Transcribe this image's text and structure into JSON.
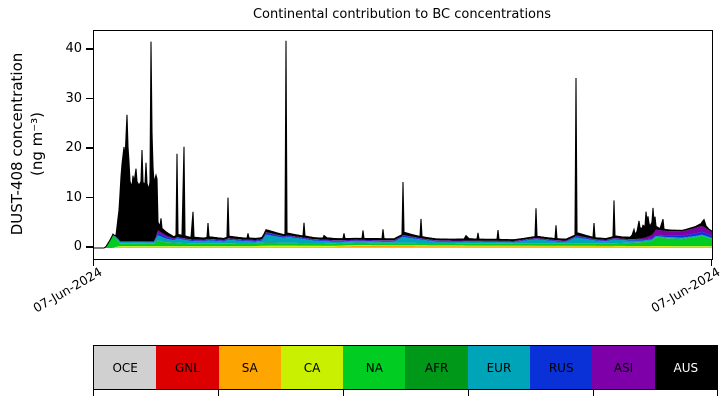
{
  "figure": {
    "title": "Continental contribution to BC concentrations",
    "ylabel_line1": "DUST-408 concentration",
    "ylabel_line2": "(ng m⁻³)",
    "y_tick_labels": [
      "0",
      "10",
      "20",
      "30",
      "40"
    ],
    "x_tick_labels": [
      "07-Jun-2024",
      "07-Jun-2024"
    ]
  },
  "legend": {
    "entries": [
      {
        "label": "OCE",
        "color": "#d0d0d0",
        "text_color": "#000000"
      },
      {
        "label": "GNL",
        "color": "#dd0000",
        "text_color": "#000000"
      },
      {
        "label": "SA",
        "color": "#ffa500",
        "text_color": "#000000"
      },
      {
        "label": "CA",
        "color": "#c8f000",
        "text_color": "#000000"
      },
      {
        "label": "NA",
        "color": "#00cc22",
        "text_color": "#000000"
      },
      {
        "label": "AFR",
        "color": "#009818",
        "text_color": "#000000"
      },
      {
        "label": "EUR",
        "color": "#00a4b8",
        "text_color": "#000000"
      },
      {
        "label": "RUS",
        "color": "#0a30d8",
        "text_color": "#000000"
      },
      {
        "label": "ASI",
        "color": "#7d00a8",
        "text_color": "#000000"
      },
      {
        "label": "AUS",
        "color": "#000000",
        "text_color": "#ffffff"
      }
    ]
  },
  "chart_data": {
    "type": "area",
    "stacked": true,
    "title": "Continental contribution to BC concentrations",
    "ylabel": "DUST-408 concentration (ng m⁻³)",
    "unit": "ng m⁻³",
    "ylim": [
      -2.2,
      43.8
    ],
    "yticks": [
      0,
      10,
      20,
      30,
      40
    ],
    "x_axis": {
      "start_label": "07-Jun-2024",
      "end_label": "07-Jun-2024",
      "unit": "normalized axis position, 0 = left tick, 618 = right tick"
    },
    "legend_position": "bottom",
    "note": "values are piecewise-linear keyframes [x, value]; layers stack bottom-to-top in listed order; AUS (black) dominates all tall spikes",
    "series": [
      {
        "name": "OCE",
        "color": "#d0d0d0",
        "keyframes": [
          [
            0,
            0
          ],
          [
            20,
            0
          ],
          [
            24,
            0.07
          ],
          [
            612,
            0.07
          ],
          [
            618,
            0.05
          ]
        ]
      },
      {
        "name": "GNL",
        "color": "#dd0000",
        "keyframes": [
          [
            0,
            0
          ],
          [
            618,
            0
          ]
        ]
      },
      {
        "name": "SA",
        "color": "#ffa500",
        "keyframes": [
          [
            0,
            0
          ],
          [
            18,
            0
          ],
          [
            24,
            0.2
          ],
          [
            240,
            0.2
          ],
          [
            262,
            0.35
          ],
          [
            420,
            0.28
          ],
          [
            560,
            0.2
          ],
          [
            618,
            0.2
          ]
        ]
      },
      {
        "name": "CA",
        "color": "#c8f000",
        "keyframes": [
          [
            0,
            0
          ],
          [
            20,
            0
          ],
          [
            28,
            0.12
          ],
          [
            160,
            0.12
          ],
          [
            175,
            0.22
          ],
          [
            300,
            0.15
          ],
          [
            618,
            0.12
          ]
        ]
      },
      {
        "name": "NA",
        "color": "#00cc22",
        "keyframes": [
          [
            0,
            0
          ],
          [
            10,
            0
          ],
          [
            12,
            0.3
          ],
          [
            19,
            2.6
          ],
          [
            23,
            1.4
          ],
          [
            26,
            0.5
          ],
          [
            60,
            0.45
          ],
          [
            64,
            1.1
          ],
          [
            72,
            0.7
          ],
          [
            100,
            0.45
          ],
          [
            170,
            0.55
          ],
          [
            210,
            0.45
          ],
          [
            320,
            0.4
          ],
          [
            420,
            0.35
          ],
          [
            520,
            0.45
          ],
          [
            548,
            0.7
          ],
          [
            558,
            1.0
          ],
          [
            562,
            1.7
          ],
          [
            572,
            1.5
          ],
          [
            588,
            1.4
          ],
          [
            600,
            1.7
          ],
          [
            608,
            2.0
          ],
          [
            613,
            1.7
          ],
          [
            618,
            1.4
          ]
        ]
      },
      {
        "name": "AFR",
        "color": "#009818",
        "keyframes": [
          [
            0,
            0
          ],
          [
            22,
            0
          ],
          [
            28,
            0.08
          ],
          [
            618,
            0.08
          ]
        ]
      },
      {
        "name": "EUR",
        "color": "#00a4b8",
        "keyframes": [
          [
            0,
            0
          ],
          [
            16,
            0
          ],
          [
            24,
            0.25
          ],
          [
            60,
            0.25
          ],
          [
            64,
            1.0
          ],
          [
            80,
            0.45
          ],
          [
            83,
            0.85
          ],
          [
            96,
            0.5
          ],
          [
            110,
            0.4
          ],
          [
            114,
            0.6
          ],
          [
            130,
            0.35
          ],
          [
            134,
            0.7
          ],
          [
            150,
            0.4
          ],
          [
            162,
            0.3
          ],
          [
            168,
            0.4
          ],
          [
            172,
            1.6
          ],
          [
            182,
            1.25
          ],
          [
            190,
            1.0
          ],
          [
            194,
            1.2
          ],
          [
            210,
            0.8
          ],
          [
            220,
            0.5
          ],
          [
            244,
            0.3
          ],
          [
            300,
            0.25
          ],
          [
            309,
            1.2
          ],
          [
            330,
            0.6
          ],
          [
            342,
            0.3
          ],
          [
            420,
            0.25
          ],
          [
            442,
            0.85
          ],
          [
            462,
            0.4
          ],
          [
            472,
            0.3
          ],
          [
            482,
            1.2
          ],
          [
            502,
            0.55
          ],
          [
            512,
            0.4
          ],
          [
            520,
            0.8
          ],
          [
            536,
            0.4
          ],
          [
            548,
            0.3
          ],
          [
            562,
            0.25
          ],
          [
            618,
            0.2
          ]
        ]
      },
      {
        "name": "RUS",
        "color": "#0a30d8",
        "keyframes": [
          [
            0,
            0
          ],
          [
            16,
            0
          ],
          [
            24,
            0.12
          ],
          [
            62,
            0.15
          ],
          [
            64,
            0.5
          ],
          [
            82,
            0.2
          ],
          [
            170,
            0.2
          ],
          [
            172,
            0.4
          ],
          [
            192,
            0.2
          ],
          [
            308,
            0.15
          ],
          [
            309,
            0.3
          ],
          [
            332,
            0.15
          ],
          [
            481,
            0.15
          ],
          [
            482,
            0.3
          ],
          [
            502,
            0.15
          ],
          [
            560,
            0.2
          ],
          [
            600,
            0.5
          ],
          [
            610,
            0.6
          ],
          [
            614,
            0.5
          ],
          [
            618,
            0.4
          ]
        ]
      },
      {
        "name": "ASI",
        "color": "#7d00a8",
        "keyframes": [
          [
            0,
            0
          ],
          [
            16,
            0
          ],
          [
            24,
            0.08
          ],
          [
            60,
            0.08
          ],
          [
            64,
            0.5
          ],
          [
            76,
            0.2
          ],
          [
            82,
            0.1
          ],
          [
            540,
            0.1
          ],
          [
            552,
            0.35
          ],
          [
            558,
            0.7
          ],
          [
            562,
            1.05
          ],
          [
            576,
            0.9
          ],
          [
            588,
            0.85
          ],
          [
            596,
            1.0
          ],
          [
            606,
            1.2
          ],
          [
            611,
            1.05
          ],
          [
            614,
            0.9
          ],
          [
            618,
            0.8
          ]
        ]
      },
      {
        "name": "AUS",
        "color": "#000000",
        "keyframes": [
          [
            0,
            0
          ],
          [
            20,
            0
          ],
          [
            22,
            0.3
          ],
          [
            25,
            6
          ],
          [
            27,
            13
          ],
          [
            28,
            15.5
          ],
          [
            30,
            19
          ],
          [
            31,
            16.5
          ],
          [
            33,
            25.5
          ],
          [
            34,
            19
          ],
          [
            35,
            16
          ],
          [
            36,
            12
          ],
          [
            38,
            11
          ],
          [
            39,
            13.2
          ],
          [
            40,
            11.8
          ],
          [
            42,
            14.6
          ],
          [
            43,
            12
          ],
          [
            45,
            11.3
          ],
          [
            47,
            12
          ],
          [
            48,
            18.4
          ],
          [
            49,
            11.8
          ],
          [
            51,
            11.5
          ],
          [
            52,
            15.8
          ],
          [
            53,
            11.6
          ],
          [
            55,
            10.5
          ],
          [
            56,
            12
          ],
          [
            57,
            40.3
          ],
          [
            58,
            22
          ],
          [
            59,
            15
          ],
          [
            60,
            11.8
          ],
          [
            62,
            12.4
          ],
          [
            63,
            11
          ],
          [
            64,
            1.6
          ],
          [
            66,
            1.1
          ],
          [
            67,
            2.8
          ],
          [
            68,
            0.9
          ],
          [
            74,
            0.6
          ],
          [
            80,
            0.35
          ],
          [
            82,
            0.45
          ],
          [
            83,
            16.8
          ],
          [
            84,
            0.55
          ],
          [
            88,
            0.5
          ],
          [
            90,
            18.5
          ],
          [
            91,
            0.5
          ],
          [
            97,
            0.4
          ],
          [
            99,
            5.6
          ],
          [
            100,
            0.5
          ],
          [
            106,
            0.4
          ],
          [
            113,
            0.35
          ],
          [
            114,
            3.2
          ],
          [
            115,
            0.45
          ],
          [
            124,
            0.35
          ],
          [
            133,
            0.3
          ],
          [
            134,
            8.2
          ],
          [
            135,
            0.45
          ],
          [
            144,
            0.35
          ],
          [
            153,
            0.3
          ],
          [
            154,
            1.3
          ],
          [
            155,
            0.35
          ],
          [
            166,
            0.3
          ],
          [
            172,
            0.5
          ],
          [
            184,
            0.35
          ],
          [
            190,
            0.3
          ],
          [
            191,
            0.4
          ],
          [
            192,
            39.4
          ],
          [
            193,
            0.45
          ],
          [
            202,
            0.35
          ],
          [
            209,
            0.3
          ],
          [
            210,
            3.0
          ],
          [
            211,
            0.35
          ],
          [
            222,
            0.3
          ],
          [
            229,
            0.3
          ],
          [
            230,
            0.85
          ],
          [
            233,
            0.4
          ],
          [
            244,
            0.3
          ],
          [
            249,
            0.3
          ],
          [
            250,
            1.35
          ],
          [
            251,
            0.3
          ],
          [
            262,
            0.3
          ],
          [
            268,
            0.3
          ],
          [
            269,
            1.9
          ],
          [
            270,
            0.3
          ],
          [
            282,
            0.3
          ],
          [
            288,
            0.3
          ],
          [
            289,
            2.2
          ],
          [
            290,
            0.3
          ],
          [
            302,
            0.3
          ],
          [
            308,
            0.3
          ],
          [
            309,
            10.7
          ],
          [
            310,
            0.6
          ],
          [
            318,
            0.4
          ],
          [
            326,
            0.3
          ],
          [
            327,
            3.9
          ],
          [
            328,
            0.35
          ],
          [
            340,
            0.3
          ],
          [
            356,
            0.25
          ],
          [
            370,
            0.3
          ],
          [
            372,
            1.0
          ],
          [
            375,
            0.4
          ],
          [
            383,
            0.3
          ],
          [
            384,
            1.6
          ],
          [
            385,
            0.3
          ],
          [
            396,
            0.3
          ],
          [
            403,
            0.3
          ],
          [
            404,
            2.2
          ],
          [
            405,
            0.3
          ],
          [
            416,
            0.25
          ],
          [
            430,
            0.25
          ],
          [
            441,
            0.3
          ],
          [
            442,
            6.0
          ],
          [
            443,
            0.35
          ],
          [
            454,
            0.3
          ],
          [
            461,
            0.3
          ],
          [
            462,
            3.0
          ],
          [
            463,
            0.3
          ],
          [
            474,
            0.3
          ],
          [
            481,
            0.3
          ],
          [
            482,
            31.8
          ],
          [
            483,
            0.6
          ],
          [
            492,
            0.4
          ],
          [
            499,
            0.3
          ],
          [
            500,
            3.2
          ],
          [
            501,
            0.3
          ],
          [
            512,
            0.3
          ],
          [
            519,
            0.3
          ],
          [
            520,
            7.6
          ],
          [
            521,
            0.45
          ],
          [
            528,
            0.35
          ],
          [
            536,
            0.4
          ],
          [
            538,
            0.8
          ],
          [
            540,
            2.0
          ],
          [
            541,
            1.0
          ],
          [
            543,
            1.5
          ],
          [
            545,
            3.6
          ],
          [
            546,
            2.2
          ],
          [
            548,
            2.0
          ],
          [
            549,
            2.6
          ],
          [
            551,
            2.2
          ],
          [
            552,
            5.2
          ],
          [
            553,
            3.2
          ],
          [
            554,
            4.1
          ],
          [
            555,
            2.6
          ],
          [
            556,
            1.9
          ],
          [
            558,
            2.6
          ],
          [
            559,
            5.2
          ],
          [
            560,
            2.2
          ],
          [
            561,
            2.9
          ],
          [
            562,
            0.7
          ],
          [
            566,
            0.3
          ],
          [
            569,
            2.3
          ],
          [
            570,
            0.3
          ],
          [
            578,
            0.2
          ],
          [
            592,
            0.2
          ],
          [
            602,
            0.3
          ],
          [
            607,
            0.5
          ],
          [
            610,
            1.5
          ],
          [
            612,
            0.5
          ],
          [
            615,
            0.2
          ],
          [
            618,
            0.15
          ]
        ]
      }
    ]
  }
}
